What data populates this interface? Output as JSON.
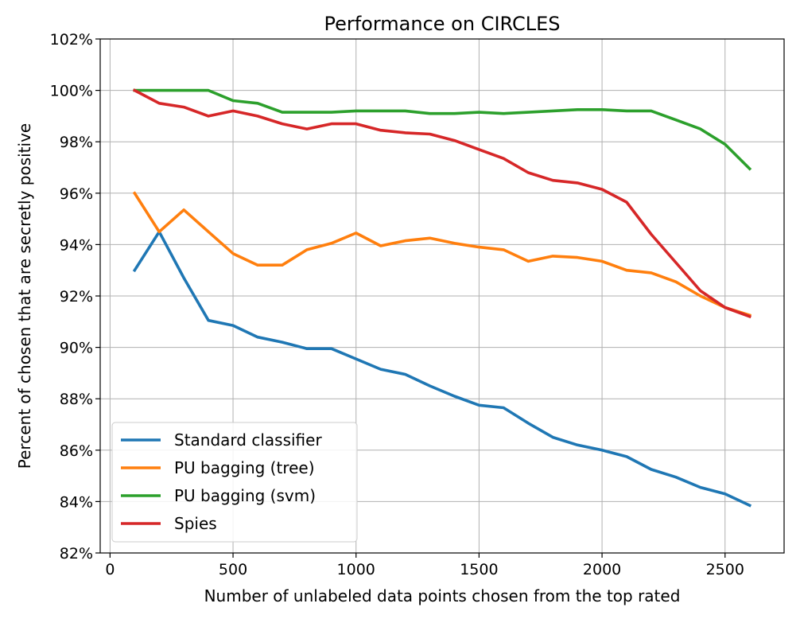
{
  "chart_data": {
    "type": "line",
    "title": "Performance on CIRCLES",
    "xlabel": "Number of unlabeled data points chosen from the top rated",
    "ylabel": "Percent of chosen that are secretly positive",
    "xlim": [
      -40,
      2740
    ],
    "ylim": [
      82,
      102
    ],
    "xticks": [
      0,
      500,
      1000,
      1500,
      2000,
      2500
    ],
    "xtick_labels": [
      "0",
      "500",
      "1000",
      "1500",
      "2000",
      "2500"
    ],
    "yticks": [
      82,
      84,
      86,
      88,
      90,
      92,
      94,
      96,
      98,
      100,
      102
    ],
    "ytick_labels": [
      "82%",
      "84%",
      "86%",
      "88%",
      "90%",
      "92%",
      "94%",
      "96%",
      "98%",
      "100%",
      "102%"
    ],
    "grid": true,
    "legend_position": "lower-left",
    "x": [
      100,
      200,
      300,
      400,
      500,
      600,
      700,
      800,
      900,
      1000,
      1100,
      1200,
      1300,
      1400,
      1500,
      1600,
      1700,
      1800,
      1900,
      2000,
      2100,
      2200,
      2300,
      2400,
      2500,
      2600
    ],
    "series": [
      {
        "name": "Standard classifier",
        "color": "#1f77b4",
        "values": [
          93.0,
          94.5,
          92.7,
          91.05,
          90.85,
          90.4,
          90.2,
          89.95,
          89.95,
          89.55,
          89.15,
          88.95,
          88.5,
          88.1,
          87.75,
          87.65,
          87.05,
          86.5,
          86.2,
          86.0,
          85.75,
          85.25,
          84.95,
          84.55,
          84.3,
          83.85
        ]
      },
      {
        "name": "PU bagging (tree)",
        "color": "#ff7f0e",
        "values": [
          96.0,
          94.5,
          95.35,
          94.5,
          93.65,
          93.2,
          93.2,
          93.8,
          94.05,
          94.45,
          93.95,
          94.15,
          94.25,
          94.05,
          93.9,
          93.8,
          93.35,
          93.55,
          93.5,
          93.35,
          93.0,
          92.9,
          92.55,
          92.0,
          91.55,
          91.25
        ]
      },
      {
        "name": "PU bagging (svm)",
        "color": "#2ca02c",
        "values": [
          100.0,
          100.0,
          100.0,
          100.0,
          99.6,
          99.5,
          99.15,
          99.15,
          99.15,
          99.2,
          99.2,
          99.2,
          99.1,
          99.1,
          99.15,
          99.1,
          99.15,
          99.2,
          99.25,
          99.25,
          99.2,
          99.2,
          98.85,
          98.5,
          97.9,
          96.95
        ]
      },
      {
        "name": "Spies",
        "color": "#d62728",
        "values": [
          100.0,
          99.5,
          99.35,
          99.0,
          99.2,
          99.0,
          98.7,
          98.5,
          98.7,
          98.7,
          98.45,
          98.35,
          98.3,
          98.05,
          97.7,
          97.35,
          96.8,
          96.5,
          96.4,
          96.15,
          95.65,
          94.4,
          93.3,
          92.2,
          91.55,
          91.2
        ]
      }
    ]
  }
}
